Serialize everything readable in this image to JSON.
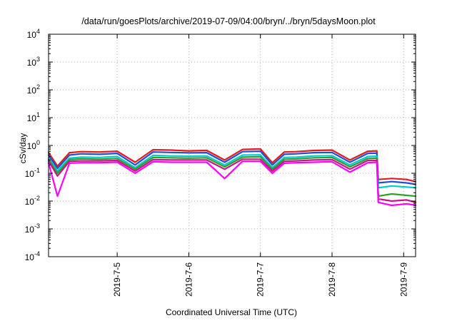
{
  "chart_data": {
    "type": "line",
    "title": "/data/run/goesPlots/archive/2019-07-09/04:00/bryn/../bryn/5daysMoon.plot",
    "xlabel": "Coordinated Universal Time (UTC)",
    "ylabel": "cSv/day",
    "yscale": "log",
    "ylim_exp": [
      -4,
      4
    ],
    "y_tick_labels": [
      {
        "base": "10",
        "exp": "-4"
      },
      {
        "base": "10",
        "exp": "-3"
      },
      {
        "base": "10",
        "exp": "-2"
      },
      {
        "base": "10",
        "exp": "-1"
      },
      {
        "base": "10",
        "exp": "0"
      },
      {
        "base": "10",
        "exp": "1"
      },
      {
        "base": "10",
        "exp": "2"
      },
      {
        "base": "10",
        "exp": "3"
      },
      {
        "base": "10",
        "exp": "4"
      }
    ],
    "xlim": [
      "2019-07-04T01:00",
      "2019-07-09T04:00"
    ],
    "x_tick_labels": [
      "2019-7-5",
      "2019-7-6",
      "2019-7-7",
      "2019-7-8",
      "2019-7-9"
    ],
    "x_tick_values": [
      "2019-07-05T00:00",
      "2019-07-06T00:00",
      "2019-07-07T00:00",
      "2019-07-08T00:00",
      "2019-07-09T00:00"
    ],
    "grid": true,
    "legend": "none",
    "series": [
      {
        "color": "#e41a1c",
        "x": [
          "2019-07-04T01:00",
          "2019-07-04T04:00",
          "2019-07-04T08:00",
          "2019-07-04T12:00",
          "2019-07-04T18:00",
          "2019-07-05T00:00",
          "2019-07-05T06:00",
          "2019-07-05T12:00",
          "2019-07-05T18:00",
          "2019-07-06T00:00",
          "2019-07-06T06:00",
          "2019-07-06T12:00",
          "2019-07-06T18:00",
          "2019-07-07T00:00",
          "2019-07-07T04:00",
          "2019-07-07T08:00",
          "2019-07-07T12:00",
          "2019-07-07T18:00",
          "2019-07-08T00:00",
          "2019-07-08T06:00",
          "2019-07-08T12:00",
          "2019-07-08T15:00",
          "2019-07-08T15:30",
          "2019-07-08T20:00",
          "2019-07-09T01:00",
          "2019-07-09T04:00"
        ],
        "y": [
          0.55,
          0.18,
          0.55,
          0.6,
          0.58,
          0.62,
          0.25,
          0.7,
          0.68,
          0.64,
          0.66,
          0.3,
          0.72,
          0.75,
          0.24,
          0.58,
          0.6,
          0.66,
          0.68,
          0.3,
          0.62,
          0.64,
          0.06,
          0.065,
          0.06,
          0.05
        ]
      },
      {
        "color": "#1f4ed8",
        "x": [
          "2019-07-04T01:00",
          "2019-07-04T04:00",
          "2019-07-04T08:00",
          "2019-07-04T12:00",
          "2019-07-04T18:00",
          "2019-07-05T00:00",
          "2019-07-05T06:00",
          "2019-07-05T12:00",
          "2019-07-05T18:00",
          "2019-07-06T00:00",
          "2019-07-06T06:00",
          "2019-07-06T12:00",
          "2019-07-06T18:00",
          "2019-07-07T00:00",
          "2019-07-07T04:00",
          "2019-07-07T08:00",
          "2019-07-07T12:00",
          "2019-07-07T18:00",
          "2019-07-08T00:00",
          "2019-07-08T06:00",
          "2019-07-08T12:00",
          "2019-07-08T15:00",
          "2019-07-08T15:30",
          "2019-07-08T20:00",
          "2019-07-09T01:00",
          "2019-07-09T04:00"
        ],
        "y": [
          0.45,
          0.15,
          0.45,
          0.5,
          0.48,
          0.52,
          0.2,
          0.58,
          0.56,
          0.54,
          0.55,
          0.25,
          0.6,
          0.62,
          0.2,
          0.48,
          0.5,
          0.55,
          0.56,
          0.25,
          0.52,
          0.53,
          0.045,
          0.05,
          0.045,
          0.04
        ]
      },
      {
        "color": "#00cccc",
        "x": [
          "2019-07-04T01:00",
          "2019-07-04T04:00",
          "2019-07-04T08:00",
          "2019-07-04T12:00",
          "2019-07-04T18:00",
          "2019-07-05T00:00",
          "2019-07-05T06:00",
          "2019-07-05T12:00",
          "2019-07-05T18:00",
          "2019-07-06T00:00",
          "2019-07-06T06:00",
          "2019-07-06T12:00",
          "2019-07-06T18:00",
          "2019-07-07T00:00",
          "2019-07-07T04:00",
          "2019-07-07T08:00",
          "2019-07-07T12:00",
          "2019-07-07T18:00",
          "2019-07-08T00:00",
          "2019-07-08T06:00",
          "2019-07-08T12:00",
          "2019-07-08T15:00",
          "2019-07-08T15:30",
          "2019-07-08T20:00",
          "2019-07-09T01:00",
          "2019-07-09T04:00"
        ],
        "y": [
          0.36,
          0.12,
          0.35,
          0.38,
          0.37,
          0.4,
          0.16,
          0.44,
          0.42,
          0.41,
          0.42,
          0.2,
          0.45,
          0.46,
          0.16,
          0.37,
          0.38,
          0.42,
          0.43,
          0.2,
          0.4,
          0.41,
          0.03,
          0.035,
          0.032,
          0.03
        ]
      },
      {
        "color": "#2ca02c",
        "x": [
          "2019-07-04T01:00",
          "2019-07-04T04:00",
          "2019-07-04T08:00",
          "2019-07-04T12:00",
          "2019-07-04T18:00",
          "2019-07-05T00:00",
          "2019-07-05T06:00",
          "2019-07-05T12:00",
          "2019-07-05T18:00",
          "2019-07-06T00:00",
          "2019-07-06T06:00",
          "2019-07-06T12:00",
          "2019-07-06T18:00",
          "2019-07-07T00:00",
          "2019-07-07T04:00",
          "2019-07-07T08:00",
          "2019-07-07T12:00",
          "2019-07-07T18:00",
          "2019-07-08T00:00",
          "2019-07-08T06:00",
          "2019-07-08T12:00",
          "2019-07-08T15:00",
          "2019-07-08T15:30",
          "2019-07-08T20:00",
          "2019-07-09T01:00",
          "2019-07-09T04:00"
        ],
        "y": [
          0.32,
          0.1,
          0.31,
          0.33,
          0.32,
          0.34,
          0.14,
          0.37,
          0.36,
          0.35,
          0.36,
          0.17,
          0.38,
          0.39,
          0.14,
          0.32,
          0.33,
          0.36,
          0.37,
          0.17,
          0.34,
          0.35,
          0.015,
          0.018,
          0.016,
          0.015
        ]
      },
      {
        "color": "#c71585",
        "x": [
          "2019-07-04T01:00",
          "2019-07-04T04:00",
          "2019-07-04T08:00",
          "2019-07-04T12:00",
          "2019-07-04T18:00",
          "2019-07-05T00:00",
          "2019-07-05T06:00",
          "2019-07-05T12:00",
          "2019-07-05T18:00",
          "2019-07-06T00:00",
          "2019-07-06T06:00",
          "2019-07-06T12:00",
          "2019-07-06T18:00",
          "2019-07-07T00:00",
          "2019-07-07T04:00",
          "2019-07-07T08:00",
          "2019-07-07T12:00",
          "2019-07-07T18:00",
          "2019-07-08T00:00",
          "2019-07-08T06:00",
          "2019-07-08T12:00",
          "2019-07-08T15:00",
          "2019-07-08T15:30",
          "2019-07-08T20:00",
          "2019-07-09T01:00",
          "2019-07-09T04:00"
        ],
        "y": [
          0.28,
          0.08,
          0.27,
          0.28,
          0.28,
          0.29,
          0.12,
          0.31,
          0.3,
          0.3,
          0.3,
          0.14,
          0.32,
          0.32,
          0.12,
          0.27,
          0.28,
          0.3,
          0.31,
          0.14,
          0.29,
          0.29,
          0.012,
          0.01,
          0.011,
          0.009
        ]
      },
      {
        "color": "#ff00ff",
        "x": [
          "2019-07-04T01:00",
          "2019-07-04T04:00",
          "2019-07-04T08:00",
          "2019-07-04T12:00",
          "2019-07-04T18:00",
          "2019-07-05T00:00",
          "2019-07-05T06:00",
          "2019-07-05T12:00",
          "2019-07-05T18:00",
          "2019-07-06T00:00",
          "2019-07-06T06:00",
          "2019-07-06T12:00",
          "2019-07-06T18:00",
          "2019-07-07T00:00",
          "2019-07-07T04:00",
          "2019-07-07T08:00",
          "2019-07-07T12:00",
          "2019-07-07T18:00",
          "2019-07-08T00:00",
          "2019-07-08T06:00",
          "2019-07-08T12:00",
          "2019-07-08T15:00",
          "2019-07-08T15:30",
          "2019-07-08T20:00",
          "2019-07-09T01:00",
          "2019-07-09T04:00"
        ],
        "y": [
          0.24,
          0.015,
          0.23,
          0.24,
          0.24,
          0.25,
          0.1,
          0.26,
          0.25,
          0.25,
          0.25,
          0.065,
          0.27,
          0.27,
          0.1,
          0.23,
          0.24,
          0.25,
          0.26,
          0.11,
          0.24,
          0.25,
          0.009,
          0.007,
          0.008,
          0.007
        ]
      }
    ]
  }
}
